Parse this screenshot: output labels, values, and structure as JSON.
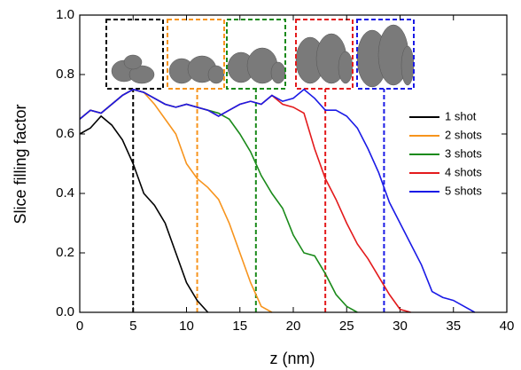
{
  "chart_data": {
    "type": "line",
    "x_label": "z (nm)",
    "y_label": "Slice filling factor",
    "x": [
      0,
      1,
      2,
      3,
      4,
      5,
      6,
      7,
      8,
      9,
      10,
      11,
      12,
      13,
      14,
      15,
      16,
      17,
      18,
      19,
      20,
      21,
      22,
      23,
      24,
      25,
      26,
      27,
      28,
      29,
      30,
      31,
      32,
      33,
      34,
      35,
      36,
      37,
      38,
      39,
      40
    ],
    "series": [
      {
        "name": "1 shot",
        "color": "#000000",
        "marker_x": 5,
        "values": [
          0.6,
          0.62,
          0.66,
          0.63,
          0.58,
          0.5,
          0.4,
          0.36,
          0.3,
          0.2,
          0.1,
          0.04,
          0.0,
          null,
          null,
          null,
          null,
          null,
          null,
          null,
          null,
          null,
          null,
          null,
          null,
          null,
          null,
          null,
          null,
          null,
          null,
          null,
          null,
          null,
          null,
          null,
          null,
          null,
          null,
          null,
          null
        ]
      },
      {
        "name": "2 shots",
        "color": "#f7941d",
        "marker_x": 11,
        "values": [
          0.65,
          0.68,
          0.67,
          0.7,
          0.73,
          0.75,
          0.74,
          0.7,
          0.65,
          0.6,
          0.5,
          0.45,
          0.42,
          0.38,
          0.3,
          0.2,
          0.1,
          0.02,
          0.0,
          null,
          null,
          null,
          null,
          null,
          null,
          null,
          null,
          null,
          null,
          null,
          null,
          null,
          null,
          null,
          null,
          null,
          null,
          null,
          null,
          null,
          null
        ]
      },
      {
        "name": "3 shots",
        "color": "#1a8a1a",
        "marker_x": 16.5,
        "values": [
          0.65,
          0.68,
          0.67,
          0.7,
          0.73,
          0.75,
          0.74,
          0.72,
          0.7,
          0.69,
          0.7,
          0.69,
          0.68,
          0.67,
          0.65,
          0.6,
          0.54,
          0.46,
          0.4,
          0.35,
          0.26,
          0.2,
          0.19,
          0.13,
          0.06,
          0.02,
          0.0,
          null,
          null,
          null,
          null,
          null,
          null,
          null,
          null,
          null,
          null,
          null,
          null,
          null,
          null
        ]
      },
      {
        "name": "4 shots",
        "color": "#e31a1c",
        "marker_x": 23,
        "values": [
          0.65,
          0.68,
          0.67,
          0.7,
          0.73,
          0.75,
          0.74,
          0.72,
          0.7,
          0.69,
          0.7,
          0.69,
          0.68,
          0.66,
          0.68,
          0.7,
          0.71,
          0.7,
          0.73,
          0.7,
          0.69,
          0.67,
          0.55,
          0.45,
          0.38,
          0.3,
          0.23,
          0.18,
          0.12,
          0.06,
          0.01,
          0.0,
          null,
          null,
          null,
          null,
          null,
          null,
          null,
          null,
          null
        ]
      },
      {
        "name": "5 shots",
        "color": "#1a1ae6",
        "marker_x": 28.5,
        "values": [
          0.65,
          0.68,
          0.67,
          0.7,
          0.73,
          0.75,
          0.74,
          0.72,
          0.7,
          0.69,
          0.7,
          0.69,
          0.68,
          0.66,
          0.68,
          0.7,
          0.71,
          0.7,
          0.73,
          0.71,
          0.72,
          0.75,
          0.72,
          0.68,
          0.68,
          0.66,
          0.62,
          0.55,
          0.47,
          0.37,
          0.3,
          0.23,
          0.16,
          0.07,
          0.05,
          0.04,
          0.02,
          0.0,
          null,
          null,
          null
        ]
      }
    ],
    "xlim": [
      0,
      40
    ],
    "xticks": [
      0,
      5,
      10,
      15,
      20,
      25,
      30,
      35,
      40
    ],
    "ylim": [
      0,
      1
    ],
    "yticks": [
      {
        "value": 0,
        "label": "0.0"
      },
      0.2,
      0.4,
      0.6,
      0.8,
      {
        "value": 1,
        "label": "1.0"
      }
    ],
    "grid": false,
    "legend": "right"
  }
}
